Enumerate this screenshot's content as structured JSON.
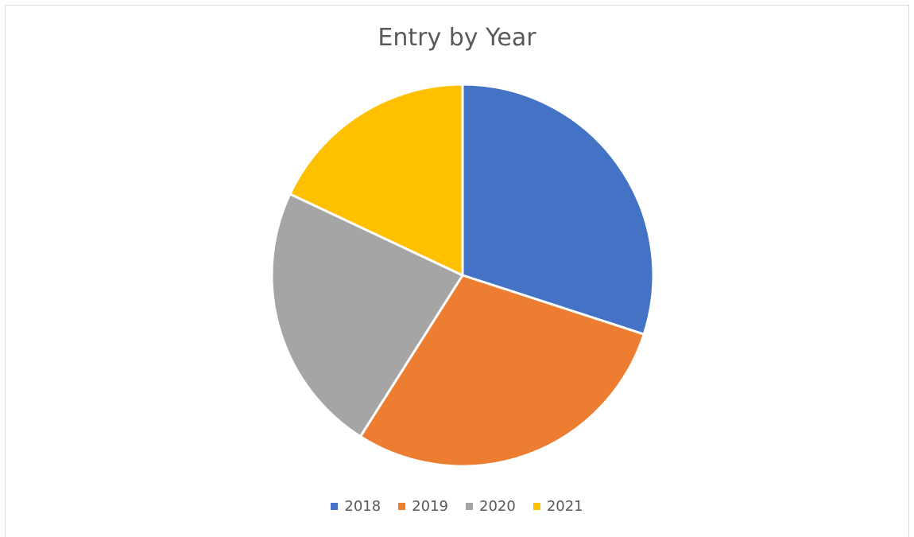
{
  "chart_data": {
    "type": "pie",
    "title": "Entry by Year",
    "categories": [
      "2018",
      "2019",
      "2020",
      "2021"
    ],
    "values": [
      30,
      29,
      23,
      18
    ],
    "colors": [
      "#4472C4",
      "#ED7D31",
      "#A5A5A5",
      "#FFC000"
    ],
    "legend_position": "bottom",
    "start": "top",
    "direction": "clockwise"
  }
}
